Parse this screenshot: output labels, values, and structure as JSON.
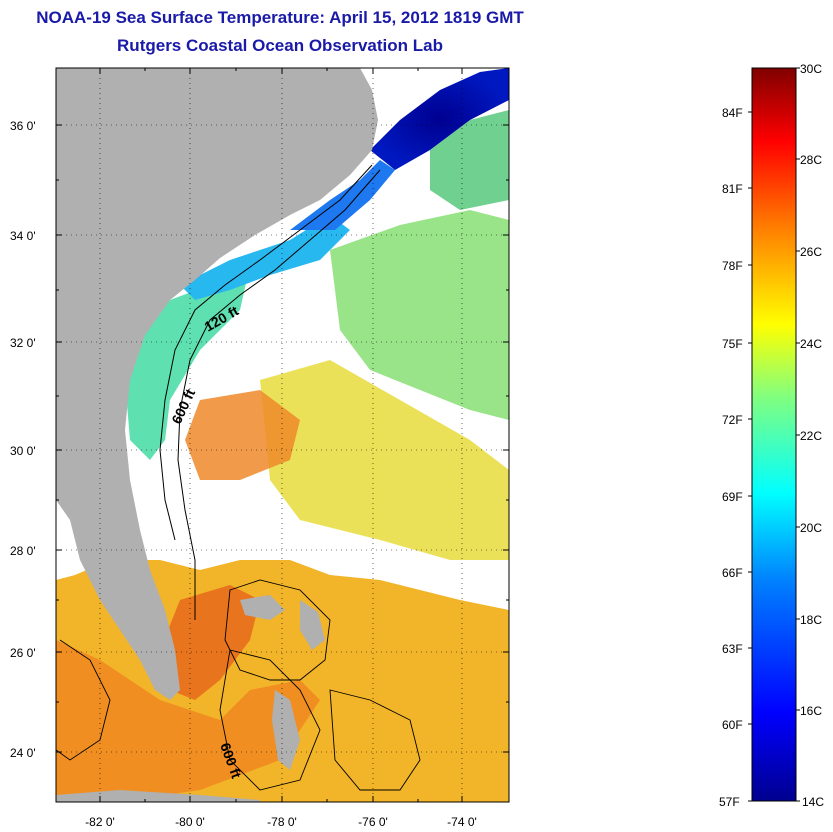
{
  "title": {
    "line1": "NOAA-19 Sea Surface Temperature:  April 15, 2012 1819 GMT",
    "line2": "Rutgers Coastal Ocean Observation Lab"
  },
  "map": {
    "lat_ticks": [
      "24 0'",
      "26 0'",
      "28 0'",
      "30 0'",
      "32 0'",
      "34 0'",
      "36 0'"
    ],
    "lon_ticks": [
      "-82 0'",
      "-80 0'",
      "-78 0'",
      "-76 0'",
      "-74 0'"
    ],
    "contours": [
      "120 ft",
      "600 ft",
      "600 ft"
    ],
    "land_color": "#b0b0b0",
    "cloud_color": "#ffffff"
  },
  "colorbar": {
    "celsius_labels": [
      "30C",
      "28C",
      "26C",
      "24C",
      "22C",
      "20C",
      "18C",
      "16C",
      "14C"
    ],
    "fahrenheit_labels": [
      "84F",
      "81F",
      "78F",
      "75F",
      "72F",
      "69F",
      "66F",
      "63F",
      "60F",
      "57F"
    ],
    "colormap": [
      "#00008f",
      "#0000ff",
      "#0080ff",
      "#00ffff",
      "#80ff80",
      "#ffff00",
      "#ff8000",
      "#ff0000",
      "#800000"
    ]
  }
}
